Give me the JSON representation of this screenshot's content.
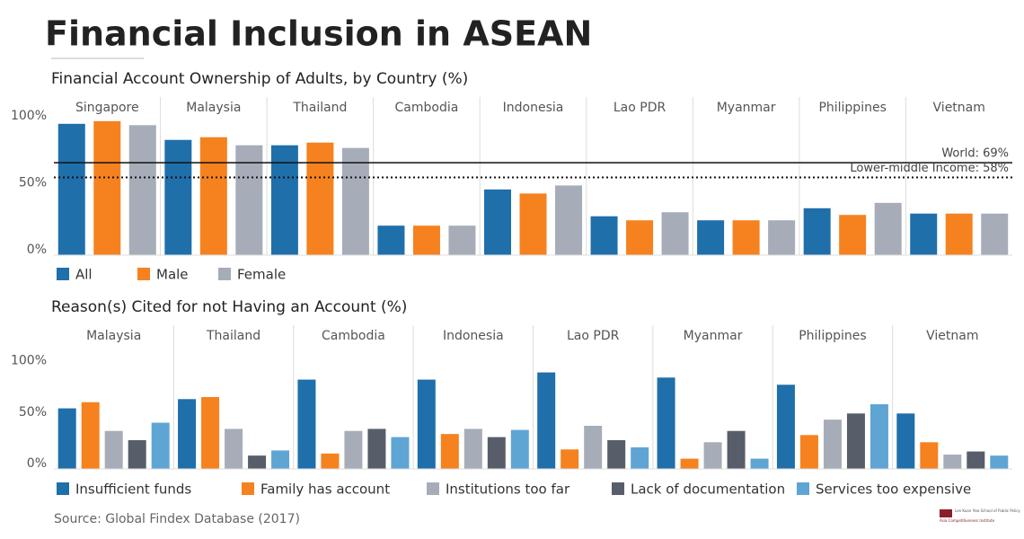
{
  "title": "Financial Inclusion in ASEAN",
  "source": "Source: Global Findex Database (2017)",
  "logo": {
    "line1": "Lee Kuan Yew School of Public Policy",
    "line2": "Asia Competitiveness Institute"
  },
  "chart_data": [
    {
      "type": "bar",
      "title": "Financial Account Ownership of Adults, by Country (%)",
      "categories": [
        "Singapore",
        "Malaysia",
        "Thailand",
        "Cambodia",
        "Indonesia",
        "Lao PDR",
        "Myanmar",
        "Philippines",
        "Vietnam"
      ],
      "series": [
        {
          "name": "All",
          "color": "#1f6fab",
          "values": [
            98,
            86,
            82,
            22,
            49,
            29,
            26,
            35,
            31
          ]
        },
        {
          "name": "Male",
          "color": "#f5821f",
          "values": [
            100,
            88,
            84,
            22,
            46,
            26,
            26,
            30,
            31
          ]
        },
        {
          "name": "Female",
          "color": "#a6adb8",
          "values": [
            97,
            82,
            80,
            22,
            52,
            32,
            26,
            39,
            31
          ]
        }
      ],
      "ylim": [
        0,
        118
      ],
      "yticks": [
        {
          "value": 0,
          "label": "0%"
        },
        {
          "value": 50,
          "label": "50%"
        },
        {
          "value": 100,
          "label": "100%"
        }
      ],
      "reference_lines": [
        {
          "value": 69,
          "label": "World: 69%",
          "style": "solid"
        },
        {
          "value": 58,
          "label": "Lower-middle Income: 58%",
          "style": "dotted"
        }
      ],
      "legend": "bottom-left"
    },
    {
      "type": "bar",
      "title": "Reason(s) Cited for not Having an Account (%)",
      "categories": [
        "Malaysia",
        "Thailand",
        "Cambodia",
        "Indonesia",
        "Lao PDR",
        "Myanmar",
        "Philippines",
        "Vietnam"
      ],
      "series": [
        {
          "name": "Insufficient funds",
          "color": "#1f6fab",
          "values": [
            59,
            68,
            87,
            87,
            94,
            89,
            82,
            54
          ]
        },
        {
          "name": "Family has account",
          "color": "#f5821f",
          "values": [
            65,
            70,
            15,
            34,
            19,
            10,
            33,
            26
          ]
        },
        {
          "name": "Institutions too far",
          "color": "#a6adb8",
          "values": [
            37,
            39,
            37,
            39,
            42,
            26,
            48,
            14
          ]
        },
        {
          "name": "Lack of documentation",
          "color": "#575e6a",
          "values": [
            28,
            13,
            39,
            31,
            28,
            37,
            54,
            17
          ]
        },
        {
          "name": "Services too expensive",
          "color": "#5fa5d3",
          "values": [
            45,
            18,
            31,
            38,
            21,
            10,
            63,
            13
          ]
        }
      ],
      "ylim": [
        0,
        140
      ],
      "yticks": [
        {
          "value": 0,
          "label": "0%"
        },
        {
          "value": 50,
          "label": "50%"
        },
        {
          "value": 100,
          "label": "100%"
        }
      ],
      "legend": "bottom-left"
    }
  ]
}
